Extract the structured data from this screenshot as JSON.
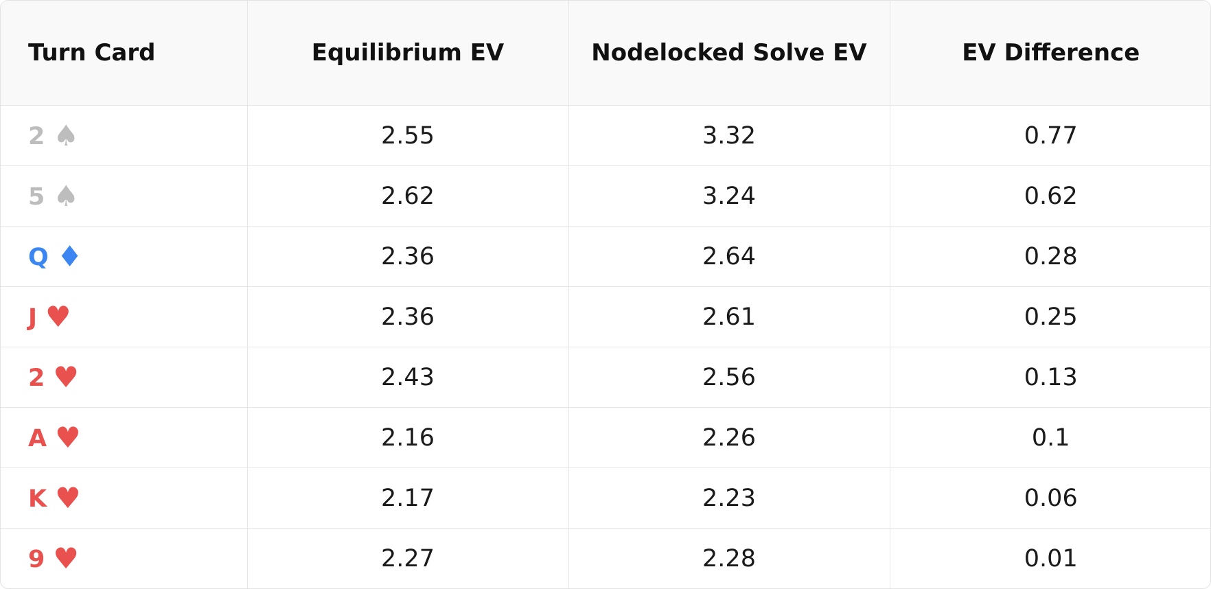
{
  "table": {
    "headers": [
      "Turn Card",
      "Equilibrium EV",
      "Nodelocked Solve EV",
      "EV Difference"
    ],
    "rows": [
      {
        "rank": "2",
        "suit": "♠",
        "color": "#bdbdbd",
        "equilibrium_ev": 2.55,
        "nodelocked_ev": 3.32,
        "ev_difference": 0.77
      },
      {
        "rank": "5",
        "suit": "♠",
        "color": "#bdbdbd",
        "equilibrium_ev": 2.62,
        "nodelocked_ev": 3.24,
        "ev_difference": 0.62
      },
      {
        "rank": "Q",
        "suit": "♦",
        "color": "#3b86f0",
        "equilibrium_ev": 2.36,
        "nodelocked_ev": 2.64,
        "ev_difference": 0.28
      },
      {
        "rank": "J",
        "suit": "♥",
        "color": "#e8514d",
        "equilibrium_ev": 2.36,
        "nodelocked_ev": 2.61,
        "ev_difference": 0.25
      },
      {
        "rank": "2",
        "suit": "♥",
        "color": "#e8514d",
        "equilibrium_ev": 2.43,
        "nodelocked_ev": 2.56,
        "ev_difference": 0.13
      },
      {
        "rank": "A",
        "suit": "♥",
        "color": "#e8514d",
        "equilibrium_ev": 2.16,
        "nodelocked_ev": 2.26,
        "ev_difference": 0.1
      },
      {
        "rank": "K",
        "suit": "♥",
        "color": "#e8514d",
        "equilibrium_ev": 2.17,
        "nodelocked_ev": 2.23,
        "ev_difference": 0.06
      },
      {
        "rank": "9",
        "suit": "♥",
        "color": "#e8514d",
        "equilibrium_ev": 2.27,
        "nodelocked_ev": 2.28,
        "ev_difference": 0.01
      }
    ]
  }
}
